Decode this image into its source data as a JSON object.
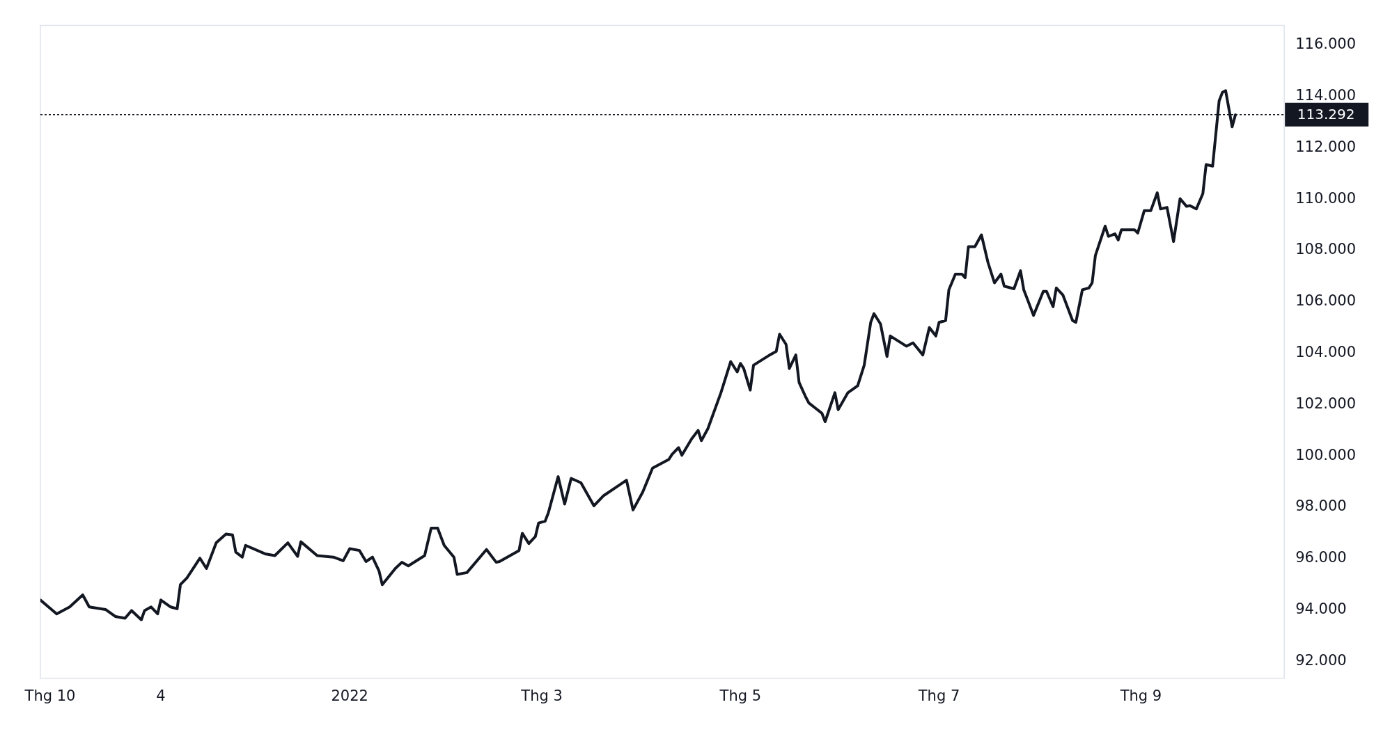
{
  "chart_data": {
    "type": "line",
    "x": [
      "2021-09-28",
      "2021-10-03",
      "2021-10-07",
      "2021-10-11",
      "2021-10-13",
      "2021-10-18",
      "2021-10-21",
      "2021-10-24",
      "2021-10-26",
      "2021-10-29",
      "2021-10-30",
      "2021-11-01",
      "2021-11-03",
      "2021-11-04",
      "2021-11-07",
      "2021-11-09",
      "2021-11-10",
      "2021-11-12",
      "2021-11-16",
      "2021-11-18",
      "2021-11-21",
      "2021-11-24",
      "2021-11-26",
      "2021-11-27",
      "2021-11-29",
      "2021-11-30",
      "2021-12-06",
      "2021-12-09",
      "2021-12-13",
      "2021-12-16",
      "2021-12-17",
      "2021-12-22",
      "2021-12-27",
      "2021-12-30",
      "2022-01-01",
      "2022-01-04",
      "2022-01-06",
      "2022-01-08",
      "2022-01-10",
      "2022-01-11",
      "2022-01-15",
      "2022-01-17",
      "2022-01-19",
      "2022-01-24",
      "2022-01-26",
      "2022-01-28",
      "2022-01-30",
      "2022-02-02",
      "2022-02-03",
      "2022-02-06",
      "2022-02-12",
      "2022-02-15",
      "2022-02-16",
      "2022-02-22",
      "2022-02-23",
      "2022-02-25",
      "2022-02-27",
      "2022-02-28",
      "2022-03-02",
      "2022-03-03",
      "2022-03-06",
      "2022-03-08",
      "2022-03-10",
      "2022-03-13",
      "2022-03-17",
      "2022-03-20",
      "2022-03-24",
      "2022-03-27",
      "2022-03-29",
      "2022-04-01",
      "2022-04-04",
      "2022-04-09",
      "2022-04-10",
      "2022-04-12",
      "2022-04-13",
      "2022-04-16",
      "2022-04-18",
      "2022-04-19",
      "2022-04-21",
      "2022-04-25",
      "2022-04-28",
      "2022-04-30",
      "2022-05-01",
      "2022-05-02",
      "2022-05-04",
      "2022-05-05",
      "2022-05-10",
      "2022-05-12",
      "2022-05-13",
      "2022-05-15",
      "2022-05-16",
      "2022-05-18",
      "2022-05-19",
      "2022-05-21",
      "2022-05-22",
      "2022-05-24",
      "2022-05-26",
      "2022-05-27",
      "2022-05-30",
      "2022-05-31",
      "2022-06-03",
      "2022-06-06",
      "2022-06-08",
      "2022-06-10",
      "2022-06-11",
      "2022-06-13",
      "2022-06-15",
      "2022-06-16",
      "2022-06-21",
      "2022-06-23",
      "2022-06-26",
      "2022-06-28",
      "2022-06-30",
      "2022-07-01",
      "2022-07-03",
      "2022-07-04",
      "2022-07-06",
      "2022-07-08",
      "2022-07-09",
      "2022-07-10",
      "2022-07-12",
      "2022-07-14",
      "2022-07-16",
      "2022-07-18",
      "2022-07-20",
      "2022-07-21",
      "2022-07-24",
      "2022-07-26",
      "2022-07-27",
      "2022-07-28",
      "2022-07-30",
      "2022-08-02",
      "2022-08-03",
      "2022-08-05",
      "2022-08-06",
      "2022-08-08",
      "2022-08-11",
      "2022-08-12",
      "2022-08-14",
      "2022-08-16",
      "2022-08-17",
      "2022-08-18",
      "2022-08-21",
      "2022-08-22",
      "2022-08-24",
      "2022-08-25",
      "2022-08-26",
      "2022-08-30",
      "2022-08-31",
      "2022-09-02",
      "2022-09-04",
      "2022-09-06",
      "2022-09-07",
      "2022-09-09",
      "2022-09-11",
      "2022-09-13",
      "2022-09-15",
      "2022-09-16",
      "2022-09-18",
      "2022-09-20",
      "2022-09-21",
      "2022-09-23",
      "2022-09-25",
      "2022-09-26",
      "2022-09-27",
      "2022-09-29",
      "2022-09-30"
    ],
    "series": [
      {
        "color": "#131722",
        "values": [
          94.38,
          93.84,
          94.11,
          94.58,
          94.11,
          94.01,
          93.74,
          93.67,
          93.97,
          93.61,
          93.97,
          94.11,
          93.84,
          94.38,
          94.11,
          94.04,
          94.98,
          95.24,
          96.01,
          95.61,
          96.61,
          96.95,
          96.92,
          96.25,
          96.05,
          96.51,
          96.18,
          96.11,
          96.61,
          96.08,
          96.65,
          96.11,
          96.05,
          95.91,
          96.38,
          96.31,
          95.88,
          96.05,
          95.51,
          94.98,
          95.61,
          95.85,
          95.71,
          96.11,
          97.18,
          97.18,
          96.51,
          96.05,
          95.38,
          95.45,
          96.35,
          95.85,
          95.88,
          96.31,
          96.98,
          96.58,
          96.85,
          97.38,
          97.45,
          97.78,
          99.19,
          98.12,
          99.12,
          98.95,
          98.05,
          98.45,
          98.79,
          99.05,
          97.89,
          98.59,
          99.52,
          99.86,
          100.06,
          100.32,
          100.02,
          100.66,
          100.99,
          100.59,
          101.06,
          102.46,
          103.67,
          103.27,
          103.6,
          103.4,
          102.56,
          103.53,
          103.93,
          104.07,
          104.74,
          104.34,
          103.4,
          103.93,
          102.86,
          102.3,
          102.06,
          101.86,
          101.66,
          101.33,
          102.46,
          101.8,
          102.46,
          102.73,
          103.53,
          105.2,
          105.54,
          105.14,
          103.87,
          104.67,
          104.27,
          104.4,
          103.93,
          105.0,
          104.67,
          105.2,
          105.27,
          106.47,
          107.08,
          107.08,
          106.94,
          108.15,
          108.15,
          108.61,
          107.54,
          106.74,
          107.08,
          106.61,
          106.51,
          107.21,
          106.47,
          106.14,
          105.47,
          106.41,
          106.41,
          105.81,
          106.54,
          106.27,
          105.27,
          105.2,
          106.47,
          106.54,
          106.74,
          107.81,
          108.95,
          108.55,
          108.65,
          108.41,
          108.81,
          108.81,
          108.68,
          109.55,
          109.55,
          110.25,
          109.62,
          109.68,
          108.35,
          110.02,
          109.72,
          109.75,
          109.62,
          110.22,
          111.35,
          111.29,
          113.83,
          114.16,
          114.23,
          112.82,
          113.29
        ]
      }
    ],
    "xlim": [
      "2021-09-28",
      "2022-10-15"
    ],
    "xticks": [
      {
        "value": "2021-10-01",
        "label": "Thg 10"
      },
      {
        "value": "2021-11-04",
        "label": "4"
      },
      {
        "value": "2022-01-01",
        "label": "2022"
      },
      {
        "value": "2022-03-01",
        "label": "Thg 3"
      },
      {
        "value": "2022-05-01",
        "label": "Thg 5"
      },
      {
        "value": "2022-07-01",
        "label": "Thg 7"
      },
      {
        "value": "2022-09-01",
        "label": "Thg 9"
      }
    ],
    "ylim": [
      91.33,
      116.77
    ],
    "yticks": [
      {
        "value": 92,
        "label": "92.000"
      },
      {
        "value": 94,
        "label": "94.000"
      },
      {
        "value": 96,
        "label": "96.000"
      },
      {
        "value": 98,
        "label": "98.000"
      },
      {
        "value": 100,
        "label": "100.000"
      },
      {
        "value": 102,
        "label": "102.000"
      },
      {
        "value": 104,
        "label": "104.000"
      },
      {
        "value": 106,
        "label": "106.000"
      },
      {
        "value": 108,
        "label": "108.000"
      },
      {
        "value": 110,
        "label": "110.000"
      },
      {
        "value": 112,
        "label": "112.000"
      },
      {
        "value": 114,
        "label": "114.000"
      },
      {
        "value": 116,
        "label": "116.000"
      }
    ],
    "ref_lines": [
      {
        "axis": "y",
        "value": 113.292,
        "label": "113.292",
        "color": "#131722",
        "line_style": "dotted"
      }
    ],
    "grid": false,
    "legend": false,
    "marker": "none",
    "line_style": "solid"
  }
}
